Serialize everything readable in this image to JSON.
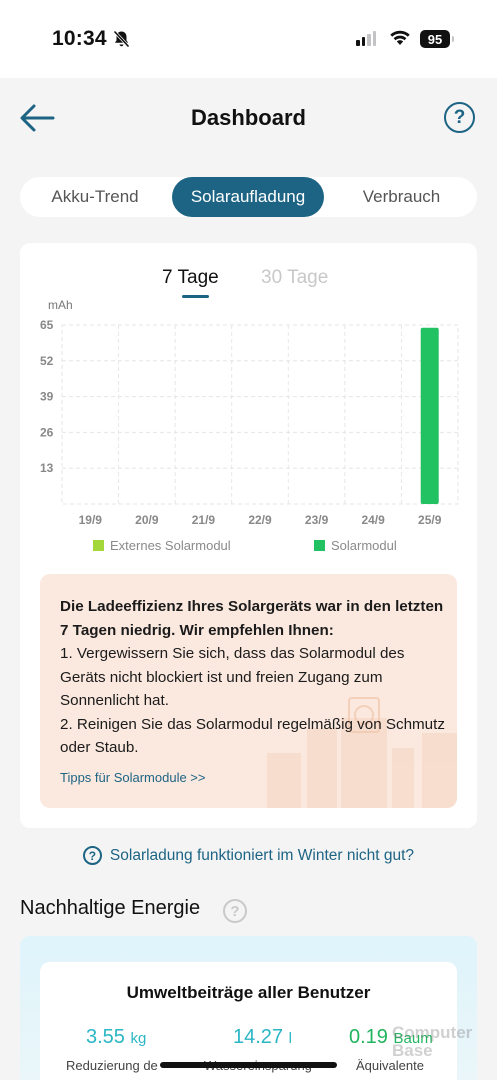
{
  "status_bar": {
    "time": "10:34",
    "battery": "95"
  },
  "header": {
    "title": "Dashboard"
  },
  "tabs": [
    {
      "label": "Akku-Trend",
      "active": false
    },
    {
      "label": "Solaraufladung",
      "active": true
    },
    {
      "label": "Verbrauch",
      "active": false
    }
  ],
  "periods": [
    {
      "label": "7 Tage",
      "active": true
    },
    {
      "label": "30 Tage",
      "active": false
    }
  ],
  "chart_data": {
    "type": "bar",
    "ylabel": "mAh",
    "ylim": [
      0,
      65
    ],
    "yticks": [
      "65",
      "52",
      "39",
      "26",
      "13"
    ],
    "categories": [
      "19/9",
      "20/9",
      "21/9",
      "22/9",
      "23/9",
      "24/9",
      "25/9"
    ],
    "series": [
      {
        "name": "Externes Solarmodul",
        "color": "#a4d83a",
        "values": [
          0,
          0,
          0,
          0,
          0,
          0,
          0
        ]
      },
      {
        "name": "Solarmodul",
        "color": "#22c161",
        "values": [
          0,
          0,
          0,
          0,
          0,
          0,
          64
        ]
      }
    ],
    "grid": true,
    "legend_position": "bottom"
  },
  "tip": {
    "heading": "Die Ladeeffizienz Ihres Solargeräts war in den letzten 7 Tagen niedrig. Wir empfehlen Ihnen:",
    "line1": "1. Vergewissern Sie sich, dass das Solarmodul des Geräts nicht blockiert ist und freien Zugang zum Sonnenlicht hat.",
    "line2": "2. Reinigen Sie das Solarmodul regelmäßig von Schmutz oder Staub.",
    "link": "Tipps für Solarmodule >>"
  },
  "winter_link": "Solarladung funktioniert im Winter nicht gut?",
  "section": {
    "title": "Nachhaltige Energie"
  },
  "impact": {
    "title": "Umweltbeiträge aller Benutzer",
    "metrics": [
      {
        "value": "3.55",
        "unit": "kg",
        "label": "Reduzierung de"
      },
      {
        "value": "14.27",
        "unit": "l",
        "label": "Wassereinsparung"
      },
      {
        "value": "0.19",
        "unit": "Baum",
        "label": "Äquivalente"
      }
    ]
  },
  "colors": {
    "accent": "#1d6484",
    "bar": "#22c161",
    "tip_bg": "#fbe9df"
  },
  "watermark": "ComputerBase"
}
